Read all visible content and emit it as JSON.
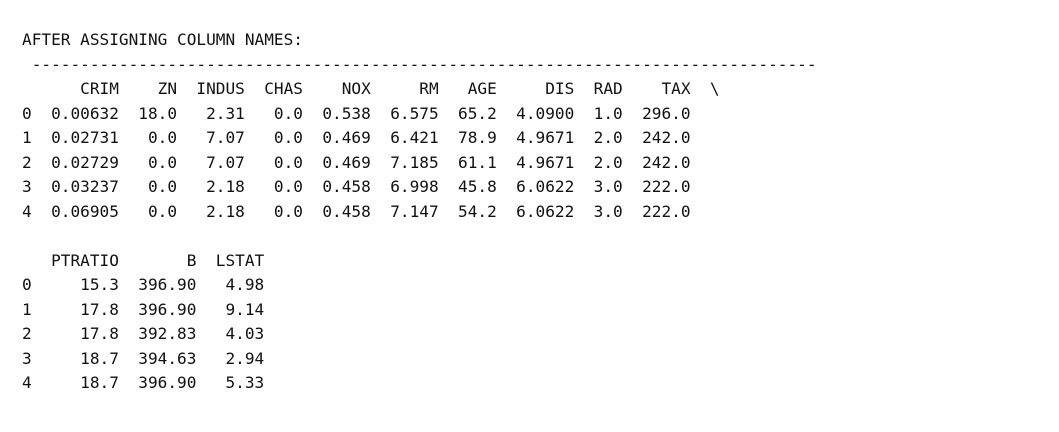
{
  "output": {
    "heading": "AFTER ASSIGNING COLUMN NAMES:",
    "separator": " ---------------------------------------------------------------------------------",
    "part1": {
      "header": "      CRIM    ZN  INDUS  CHAS    NOX     RM   AGE     DIS  RAD    TAX  \\",
      "rows": [
        "0  0.00632  18.0   2.31   0.0  0.538  6.575  65.2  4.0900  1.0  296.0",
        "1  0.02731   0.0   7.07   0.0  0.469  6.421  78.9  4.9671  2.0  242.0",
        "2  0.02729   0.0   7.07   0.0  0.469  7.185  61.1  4.9671  2.0  242.0",
        "3  0.03237   0.0   2.18   0.0  0.458  6.998  45.8  6.0622  3.0  222.0",
        "4  0.06905   0.0   2.18   0.0  0.458  7.147  54.2  6.0622  3.0  222.0"
      ]
    },
    "part2": {
      "header": "   PTRATIO       B  LSTAT",
      "rows": [
        "0     15.3  396.90   4.98",
        "1     17.8  396.90   9.14",
        "2     17.8  392.83   4.03",
        "3     18.7  394.63   2.94",
        "4     18.7  396.90   5.33"
      ]
    }
  }
}
